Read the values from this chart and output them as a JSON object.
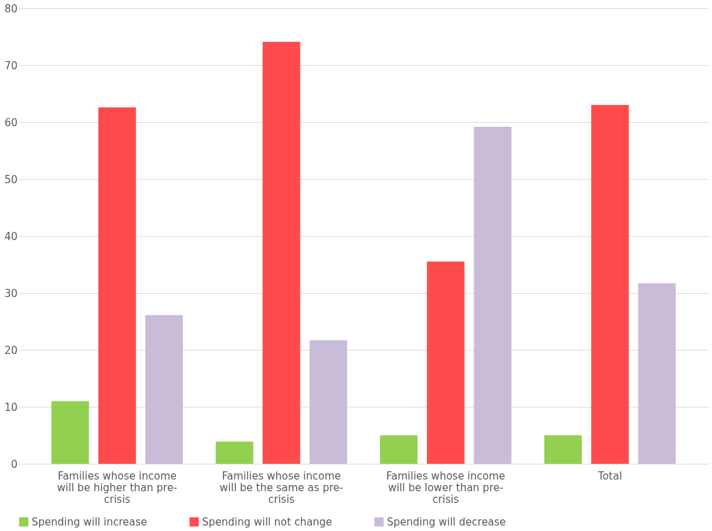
{
  "chart_data": {
    "type": "bar",
    "categories": [
      "Families whose income will be higher than pre-crisis",
      "Families whose income will be the same as pre-crisis",
      "Families whose income will be lower than pre-crisis",
      "Total"
    ],
    "series": [
      {
        "name": "Spending will increase",
        "color": "#92d050",
        "values": [
          11.0,
          3.9,
          5.0,
          5.0
        ]
      },
      {
        "name": "Spending will not change",
        "color": "#ff4b4b",
        "values": [
          62.6,
          74.1,
          35.5,
          63.0
        ]
      },
      {
        "name": "Spending will decrease",
        "color": "#c8bcd8",
        "values": [
          26.1,
          21.7,
          59.2,
          31.7
        ]
      }
    ],
    "ylim": [
      0,
      80
    ],
    "yticks": [
      0,
      10,
      20,
      30,
      40,
      50,
      60,
      70,
      80
    ],
    "grid": "y",
    "legend": "bottom"
  }
}
